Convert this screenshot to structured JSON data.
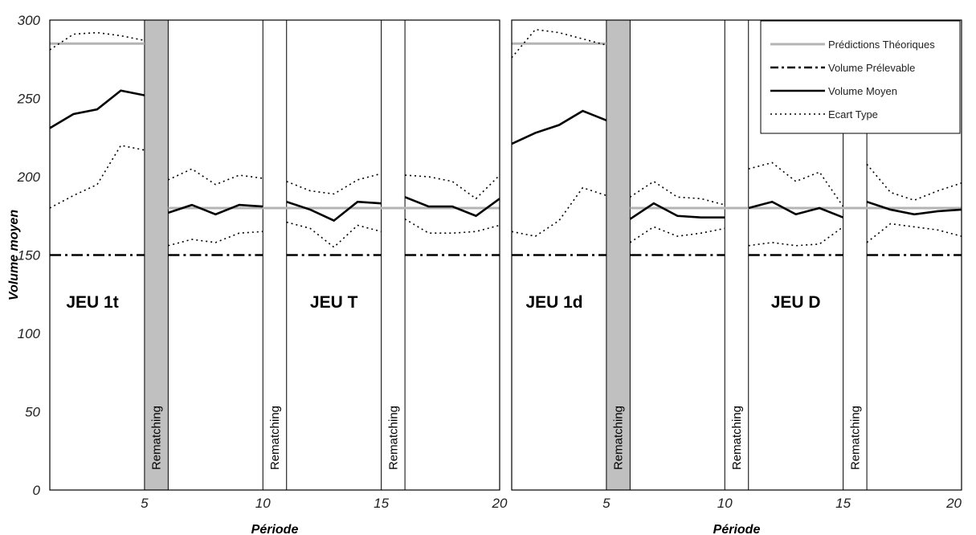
{
  "chart_data": {
    "type": "line",
    "ylabel": "Volume moyen",
    "ylim": [
      0,
      300
    ],
    "yticks": [
      0,
      50,
      100,
      150,
      200,
      250,
      300
    ],
    "legend": {
      "position": "top-right",
      "entries": [
        {
          "key": "pred",
          "label": "Prédictions Théoriques",
          "color": "#b4b4b4",
          "style": "solid"
        },
        {
          "key": "prel",
          "label": "Volume Prélevable",
          "color": "#000000",
          "style": "dashdot"
        },
        {
          "key": "mean",
          "label": "Volume Moyen",
          "color": "#000000",
          "style": "solid"
        },
        {
          "key": "sd",
          "label": "Ecart Type",
          "color": "#000000",
          "style": "dotted"
        }
      ]
    },
    "panels": [
      {
        "xlabel": "Période",
        "xlim": [
          1,
          20
        ],
        "xticks": [
          5,
          10,
          15,
          20
        ],
        "rematching": [
          {
            "x0": 5,
            "x1": 6,
            "shaded": true,
            "label": "Rematching"
          },
          {
            "x0": 10,
            "x1": 11,
            "shaded": false,
            "label": "Rematching"
          },
          {
            "x0": 15,
            "x1": 16,
            "shaded": false,
            "label": "Rematching"
          }
        ],
        "game_labels": [
          {
            "text": "JEU 1t",
            "x": 2.8,
            "y": 120
          },
          {
            "text": "JEU T",
            "x": 13.0,
            "y": 120
          }
        ],
        "predictions": [
          {
            "x0": 1,
            "x1": 5,
            "y": 285
          },
          {
            "x0": 6,
            "x1": 20,
            "y": 180
          }
        ],
        "prelevable": [
          {
            "x0": 1,
            "x1": 20,
            "y": 150
          }
        ],
        "mean_segments": [
          [
            [
              1,
              231
            ],
            [
              2,
              240
            ],
            [
              3,
              243
            ],
            [
              4,
              255
            ],
            [
              5,
              252
            ]
          ],
          [
            [
              6,
              177
            ],
            [
              7,
              182
            ],
            [
              8,
              176
            ],
            [
              9,
              182
            ],
            [
              10,
              181
            ]
          ],
          [
            [
              11,
              184
            ],
            [
              12,
              179
            ],
            [
              13,
              172
            ],
            [
              14,
              184
            ],
            [
              15,
              183
            ]
          ],
          [
            [
              16,
              187
            ],
            [
              17,
              181
            ],
            [
              18,
              181
            ],
            [
              19,
              175
            ],
            [
              20,
              186
            ]
          ]
        ],
        "sd_segments": [
          [
            [
              1,
              281
            ],
            [
              2,
              291
            ],
            [
              3,
              292
            ],
            [
              4,
              290
            ],
            [
              5,
              287
            ]
          ],
          [
            [
              1,
              180
            ],
            [
              2,
              188
            ],
            [
              3,
              195
            ],
            [
              4,
              220
            ],
            [
              5,
              217
            ]
          ],
          [
            [
              6,
              198
            ],
            [
              7,
              205
            ],
            [
              8,
              195
            ],
            [
              9,
              201
            ],
            [
              10,
              199
            ]
          ],
          [
            [
              6,
              156
            ],
            [
              7,
              160
            ],
            [
              8,
              158
            ],
            [
              9,
              164
            ],
            [
              10,
              165
            ]
          ],
          [
            [
              11,
              197
            ],
            [
              12,
              191
            ],
            [
              13,
              189
            ],
            [
              14,
              198
            ],
            [
              15,
              202
            ]
          ],
          [
            [
              11,
              171
            ],
            [
              12,
              167
            ],
            [
              13,
              155
            ],
            [
              14,
              169
            ],
            [
              15,
              165
            ]
          ],
          [
            [
              16,
              201
            ],
            [
              17,
              200
            ],
            [
              18,
              197
            ],
            [
              19,
              186
            ],
            [
              20,
              201
            ]
          ],
          [
            [
              16,
              173
            ],
            [
              17,
              164
            ],
            [
              18,
              164
            ],
            [
              19,
              165
            ],
            [
              20,
              169
            ]
          ]
        ]
      },
      {
        "xlabel": "Période",
        "xlim": [
          1,
          20
        ],
        "xticks": [
          5,
          10,
          15,
          20
        ],
        "rematching": [
          {
            "x0": 5,
            "x1": 6,
            "shaded": true,
            "label": "Rematching"
          },
          {
            "x0": 10,
            "x1": 11,
            "shaded": false,
            "label": "Rematching"
          },
          {
            "x0": 15,
            "x1": 16,
            "shaded": false,
            "label": "Rematching"
          }
        ],
        "game_labels": [
          {
            "text": "JEU 1d",
            "x": 2.8,
            "y": 120
          },
          {
            "text": "JEU D",
            "x": 13.0,
            "y": 120
          }
        ],
        "predictions": [
          {
            "x0": 1,
            "x1": 5,
            "y": 285
          },
          {
            "x0": 6,
            "x1": 20,
            "y": 180
          }
        ],
        "prelevable": [
          {
            "x0": 1,
            "x1": 20,
            "y": 150
          }
        ],
        "mean_segments": [
          [
            [
              1,
              221
            ],
            [
              2,
              228
            ],
            [
              3,
              233
            ],
            [
              4,
              242
            ],
            [
              5,
              236
            ]
          ],
          [
            [
              6,
              173
            ],
            [
              7,
              183
            ],
            [
              8,
              175
            ],
            [
              9,
              174
            ],
            [
              10,
              174
            ]
          ],
          [
            [
              11,
              180
            ],
            [
              12,
              184
            ],
            [
              13,
              176
            ],
            [
              14,
              180
            ],
            [
              15,
              174
            ]
          ],
          [
            [
              16,
              184
            ],
            [
              17,
              179
            ],
            [
              18,
              176
            ],
            [
              19,
              178
            ],
            [
              20,
              179
            ]
          ]
        ],
        "sd_segments": [
          [
            [
              1,
              276
            ],
            [
              2,
              294
            ],
            [
              3,
              292
            ],
            [
              4,
              288
            ],
            [
              5,
              284
            ]
          ],
          [
            [
              1,
              165
            ],
            [
              2,
              162
            ],
            [
              3,
              172
            ],
            [
              4,
              193
            ],
            [
              5,
              188
            ]
          ],
          [
            [
              6,
              187
            ],
            [
              7,
              197
            ],
            [
              8,
              187
            ],
            [
              9,
              186
            ],
            [
              10,
              182
            ]
          ],
          [
            [
              6,
              158
            ],
            [
              7,
              168
            ],
            [
              8,
              162
            ],
            [
              9,
              164
            ],
            [
              10,
              167
            ]
          ],
          [
            [
              11,
              205
            ],
            [
              12,
              209
            ],
            [
              13,
              197
            ],
            [
              14,
              203
            ],
            [
              15,
              181
            ]
          ],
          [
            [
              11,
              156
            ],
            [
              12,
              158
            ],
            [
              13,
              156
            ],
            [
              14,
              157
            ],
            [
              15,
              168
            ]
          ],
          [
            [
              16,
              208
            ],
            [
              17,
              190
            ],
            [
              18,
              185
            ],
            [
              19,
              191
            ],
            [
              20,
              196
            ]
          ],
          [
            [
              16,
              158
            ],
            [
              17,
              170
            ],
            [
              18,
              168
            ],
            [
              19,
              166
            ],
            [
              20,
              162
            ]
          ]
        ]
      }
    ]
  }
}
